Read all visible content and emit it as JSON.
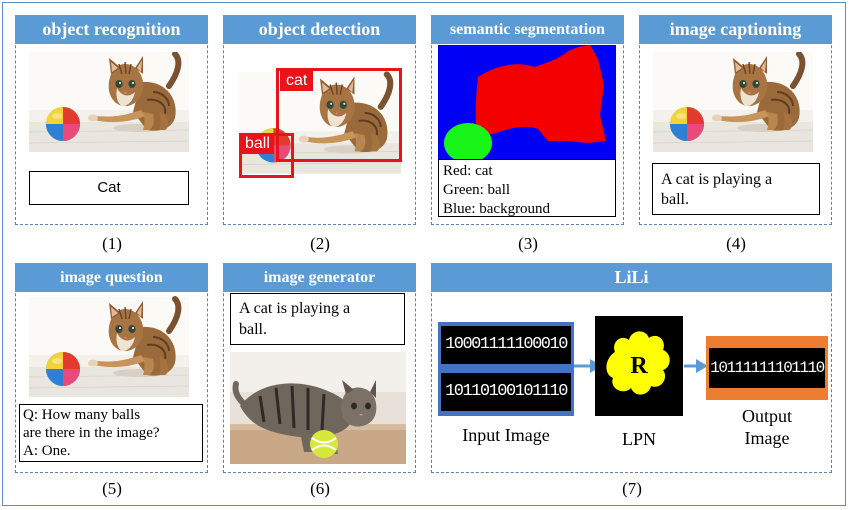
{
  "panels": [
    {
      "id": 1,
      "title": "object recognition",
      "number": "(1)",
      "text_lines": [
        "Cat"
      ]
    },
    {
      "id": 2,
      "title": "object detection",
      "number": "(2)",
      "labels": [
        "cat",
        "ball"
      ]
    },
    {
      "id": 3,
      "title": "semantic segmentation",
      "number": "(3)",
      "text_lines": [
        "Red: cat",
        "Green: ball",
        "Blue: background"
      ]
    },
    {
      "id": 4,
      "title": "image captioning",
      "number": "(4)",
      "text_lines": [
        "A cat is playing a",
        "ball."
      ]
    },
    {
      "id": 5,
      "title": "image question",
      "number": "(5)",
      "text_lines": [
        "Q: How many balls",
        "are there in the image?",
        "A: One."
      ]
    },
    {
      "id": 6,
      "title": "image generator",
      "number": "(6)",
      "text_lines": [
        "A cat is playing a",
        "ball."
      ]
    },
    {
      "id": 7,
      "title": "LiLi",
      "number": "(7)"
    }
  ],
  "lili": {
    "input_bits": [
      "10001111100010",
      "10110100101110"
    ],
    "input_label": "Input Image",
    "lpn_letter": "R",
    "lpn_label": "LPN",
    "output_bits": "10111111101110",
    "output_label_lines": [
      "Output",
      "Image"
    ]
  },
  "colors": {
    "title_bar": "#5b9bd5",
    "detection_red": "#e8141a",
    "seg_background": "#0000f5",
    "seg_cat": "#f50000",
    "seg_ball": "#19f519",
    "lpn_cloud": "#ffff00",
    "input_border": "#4472c4",
    "output_border": "#ed7d31",
    "arrow": "#5b9bd5"
  }
}
